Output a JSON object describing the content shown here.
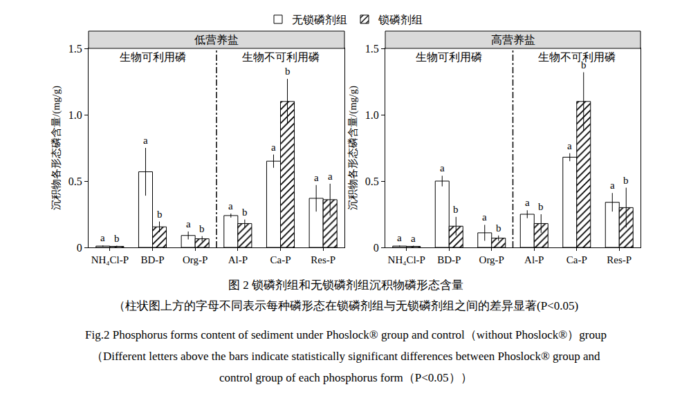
{
  "chart_data": [
    {
      "type": "bar",
      "title": "低营养盐",
      "categories": [
        "NH₄Cl-P",
        "BD-P",
        "Org-P",
        "Al-P",
        "Ca-P",
        "Res-P"
      ],
      "ylabel": "沉积物各形态磷含量/(mg/g)",
      "ylim": [
        0,
        1.5
      ],
      "yticks": [
        0,
        0.5,
        {
          "value": 1,
          "label": "1.0"
        },
        1.5
      ],
      "grid": false,
      "legend": "top",
      "groups": [
        {
          "label": "生物可利用磷",
          "categories": [
            "NH₄Cl-P",
            "BD-P",
            "Org-P"
          ]
        },
        {
          "label": "生物不可利用磷",
          "categories": [
            "Al-P",
            "Ca-P",
            "Res-P"
          ]
        }
      ],
      "series": [
        {
          "name": "无锁磷剂组",
          "color": "#ffffff",
          "marker": "plain",
          "values": [
            0.01,
            0.57,
            0.09,
            0.24,
            0.65,
            0.37
          ],
          "errors": [
            0.005,
            0.18,
            0.03,
            0.015,
            0.05,
            0.1
          ],
          "significance_letters": [
            "a",
            "a",
            "a",
            "a",
            "a",
            "a"
          ]
        },
        {
          "name": "锁磷剂组",
          "color": "#ffffff",
          "marker": "hatch",
          "values": [
            0.008,
            0.155,
            0.065,
            0.18,
            1.1,
            0.36
          ],
          "errors": [
            0.005,
            0.04,
            0.02,
            0.03,
            0.17,
            0.12
          ],
          "significance_letters": [
            "b",
            "b",
            "b",
            "b",
            "b",
            "a"
          ]
        }
      ]
    },
    {
      "type": "bar",
      "title": "高营养盐",
      "categories": [
        "NH₄Cl-P",
        "BD-P",
        "Org-P",
        "Al-P",
        "Ca-P",
        "Res-P"
      ],
      "ylabel": "沉积物各形态磷含量/(mg/g)",
      "ylim": [
        0,
        1.5
      ],
      "yticks": [
        0,
        0.5,
        {
          "value": 1,
          "label": "1.0"
        },
        1.5
      ],
      "grid": false,
      "legend": "top",
      "groups": [
        {
          "label": "生物可利用磷",
          "categories": [
            "NH₄Cl-P",
            "BD-P",
            "Org-P"
          ]
        },
        {
          "label": "生物不可利用磷",
          "categories": [
            "Al-P",
            "Ca-P",
            "Res-P"
          ]
        }
      ],
      "series": [
        {
          "name": "无锁磷剂组",
          "color": "#ffffff",
          "marker": "plain",
          "values": [
            0.01,
            0.5,
            0.11,
            0.25,
            0.68,
            0.34
          ],
          "errors": [
            0.005,
            0.04,
            0.06,
            0.03,
            0.03,
            0.07
          ],
          "significance_letters": [
            "a",
            "a",
            "a",
            "a",
            "a",
            "a"
          ]
        },
        {
          "name": "锁磷剂组",
          "color": "#ffffff",
          "marker": "hatch",
          "values": [
            0.008,
            0.16,
            0.07,
            0.18,
            1.1,
            0.3
          ],
          "errors": [
            0.005,
            0.07,
            0.02,
            0.07,
            0.22,
            0.15
          ],
          "significance_letters": [
            "a",
            "b",
            "b",
            "b",
            "b",
            "b"
          ]
        }
      ]
    }
  ],
  "caption": [
    "图 2 锁磷剂组和无锁磷剂组沉积物磷形态含量",
    "（柱状图上方的字母不同表示每种磷形态在锁磷剂组与无锁磷剂组之间的差异显著(P<0.05)",
    "Fig.2 Phosphorus forms content of sediment under Phoslock® group and control（without Phoslock®）group",
    "（Different letters above the bars indicate statistically significant differences between Phoslock® group and",
    "control group of each phosphorus form（P<0.05））"
  ]
}
